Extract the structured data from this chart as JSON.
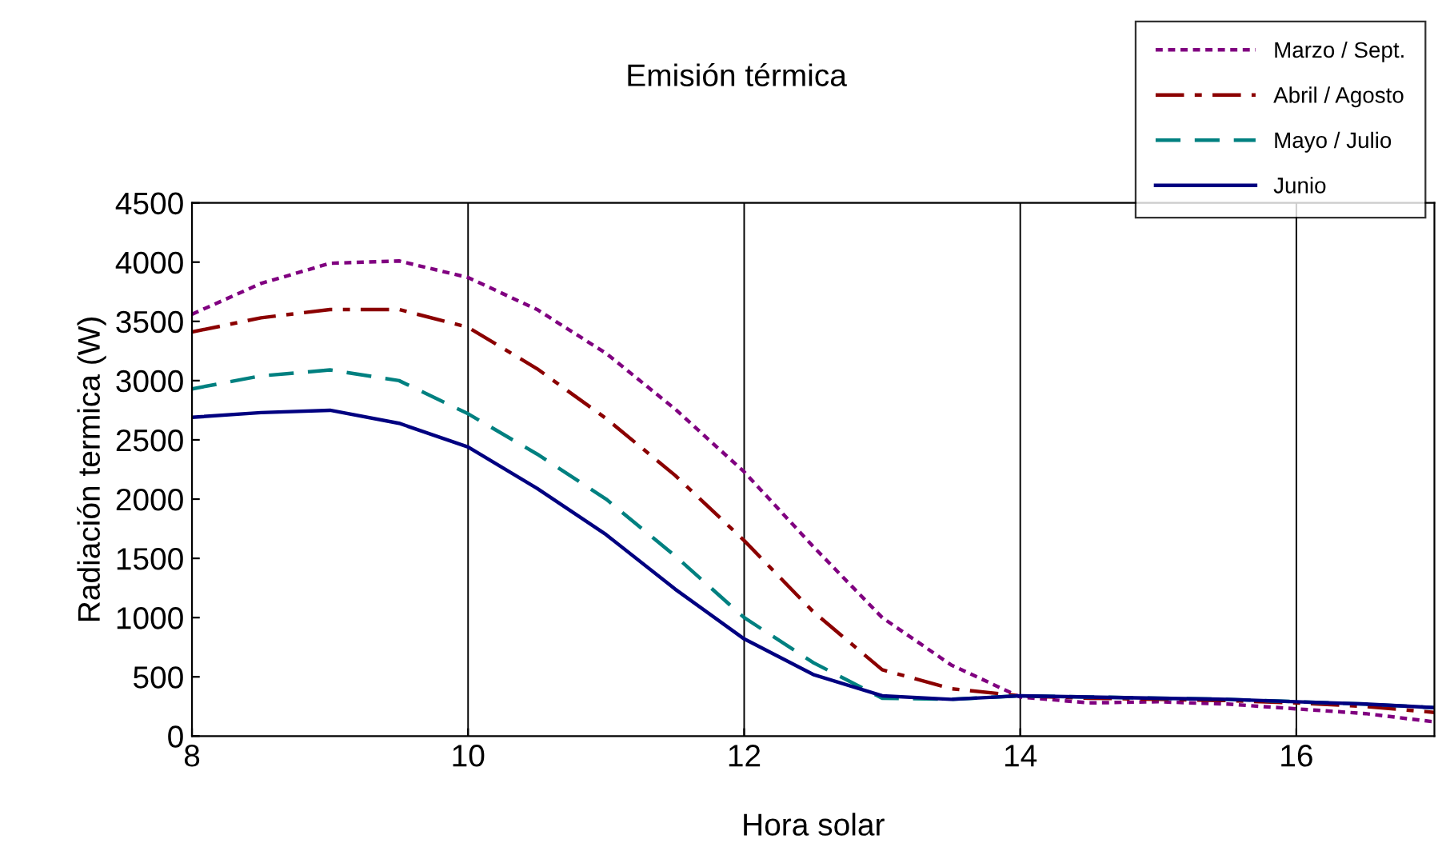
{
  "chart_data": {
    "type": "line",
    "title": "Emisión térmica",
    "xlabel": "Hora solar",
    "ylabel": "Radiación termica (W)",
    "x": [
      8,
      8.5,
      9,
      9.5,
      10,
      10.5,
      11,
      11.5,
      12,
      12.5,
      13,
      13.5,
      14,
      14.5,
      15,
      15.5,
      16,
      16.5,
      17
    ],
    "series": [
      {
        "name": "Marzo / Sept.",
        "color": "#800080",
        "line_style": "dotted",
        "values": [
          3560,
          3820,
          3990,
          4010,
          3870,
          3600,
          3230,
          2760,
          2230,
          1600,
          1000,
          600,
          330,
          280,
          290,
          270,
          230,
          190,
          120
        ]
      },
      {
        "name": "Abril / Agosto",
        "color": "#8b0000",
        "line_style": "dashdot",
        "values": [
          3410,
          3530,
          3600,
          3600,
          3450,
          3100,
          2680,
          2200,
          1650,
          1050,
          560,
          400,
          340,
          320,
          310,
          300,
          280,
          250,
          200
        ]
      },
      {
        "name": "Mayo / Julio",
        "color": "#008080",
        "line_style": "dashed",
        "values": [
          2930,
          3040,
          3090,
          3000,
          2720,
          2380,
          2000,
          1520,
          1000,
          620,
          320,
          310,
          340,
          330,
          320,
          310,
          290,
          270,
          240
        ]
      },
      {
        "name": "Junio",
        "color": "#000080",
        "line_style": "solid",
        "values": [
          2690,
          2730,
          2750,
          2640,
          2440,
          2090,
          1700,
          1240,
          820,
          520,
          340,
          310,
          340,
          330,
          320,
          310,
          290,
          270,
          240
        ]
      }
    ],
    "xlim": [
      8,
      17
    ],
    "xticks": [
      8,
      10,
      12,
      14,
      16
    ],
    "ylim": [
      0,
      4500
    ],
    "yticks": [
      0,
      500,
      1000,
      1500,
      2000,
      2500,
      3000,
      3500,
      4000,
      4500
    ],
    "grid": "x",
    "legend": "top right",
    "marker": "none"
  }
}
